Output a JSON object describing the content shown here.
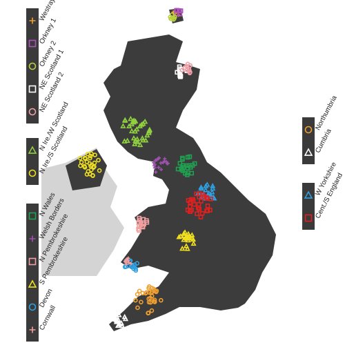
{
  "legend_left": [
    {
      "items": [
        {
          "label": "Westray",
          "marker": "plus",
          "color": "#f0a030"
        },
        {
          "label": "Orkney 1",
          "marker": "square",
          "color": "#b050c0"
        },
        {
          "label": "Orkney 2",
          "marker": "circle",
          "color": "#b8d040"
        },
        {
          "label": "NE Scotland 1",
          "marker": "square",
          "color": "#ffffff"
        },
        {
          "label": "NE Scotland 2",
          "marker": "circle",
          "color": "#f0a0a8"
        }
      ]
    },
    {
      "items": [
        {
          "label": "N Ire./W Scotland",
          "marker": "triangle",
          "color": "#90d040"
        },
        {
          "label": "N Ire./S Scotland",
          "marker": "circle",
          "color": "#f0e020"
        }
      ]
    },
    {
      "items": [
        {
          "label": "N Wales",
          "marker": "square",
          "color": "#20a050"
        },
        {
          "label": "Welsh Borders",
          "marker": "plus",
          "color": "#a050b0"
        },
        {
          "label": "N Pembrokeshire",
          "marker": "square",
          "color": "#f0a0a0"
        },
        {
          "label": "S Pembrokeshire",
          "marker": "triangle",
          "color": "#f0e020"
        },
        {
          "label": "Devon",
          "marker": "circle",
          "color": "#30a0e0"
        },
        {
          "label": "Cornwall",
          "marker": "plus",
          "color": "#f0a0a0"
        }
      ]
    }
  ],
  "legend_right": [
    {
      "items": [
        {
          "label": "Northumbria",
          "marker": "circle",
          "color": "#f0a030"
        },
        {
          "label": "Cumbria",
          "marker": "triangle",
          "color": "#ffffff"
        }
      ]
    },
    {
      "items": [
        {
          "label": "W Yorkshire",
          "marker": "triangle",
          "color": "#30a0e0"
        },
        {
          "label": "Cent./S England",
          "marker": "square",
          "color": "#e02020"
        }
      ]
    }
  ]
}
